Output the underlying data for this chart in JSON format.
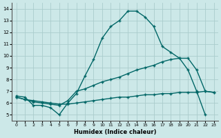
{
  "xlabel": "Humidex (Indice chaleur)",
  "bg_color": "#cce8e8",
  "grid_color": "#aacccc",
  "line_color": "#006666",
  "xlim": [
    -0.5,
    23.5
  ],
  "ylim": [
    4.5,
    14.5
  ],
  "xticks": [
    0,
    1,
    2,
    3,
    4,
    5,
    6,
    7,
    8,
    9,
    10,
    11,
    12,
    13,
    14,
    15,
    16,
    17,
    18,
    19,
    20,
    21,
    22,
    23
  ],
  "yticks": [
    5,
    6,
    7,
    8,
    9,
    10,
    11,
    12,
    13,
    14
  ],
  "line1_x": [
    0,
    1,
    2,
    3,
    4,
    5,
    6,
    7,
    8,
    9,
    10,
    11,
    12,
    13,
    14,
    15,
    16,
    17,
    18,
    19,
    20,
    21,
    22
  ],
  "line1_y": [
    6.6,
    6.5,
    5.8,
    5.8,
    5.6,
    5.0,
    6.0,
    6.8,
    8.3,
    9.7,
    11.5,
    12.5,
    13.0,
    13.8,
    13.8,
    13.3,
    12.5,
    10.8,
    10.3,
    9.8,
    8.8,
    7.0,
    5.0
  ],
  "line2_x": [
    0,
    1,
    2,
    3,
    4,
    5,
    6,
    7,
    8,
    9,
    10,
    11,
    12,
    13,
    14,
    15,
    16,
    17,
    18,
    19,
    20,
    21,
    22,
    23
  ],
  "line2_y": [
    6.5,
    6.3,
    6.1,
    6.0,
    5.9,
    5.8,
    6.2,
    7.0,
    7.2,
    7.5,
    7.8,
    8.0,
    8.2,
    8.5,
    8.8,
    9.0,
    9.2,
    9.5,
    9.7,
    9.8,
    9.8,
    8.8,
    7.0,
    6.9
  ],
  "line3_x": [
    0,
    1,
    2,
    3,
    4,
    5,
    6,
    7,
    8,
    9,
    10,
    11,
    12,
    13,
    14,
    15,
    16,
    17,
    18,
    19,
    20,
    21,
    22,
    23
  ],
  "line3_y": [
    6.5,
    6.3,
    6.2,
    6.1,
    6.0,
    5.9,
    5.9,
    6.0,
    6.1,
    6.2,
    6.3,
    6.4,
    6.5,
    6.5,
    6.6,
    6.7,
    6.7,
    6.8,
    6.8,
    6.9,
    6.9,
    6.9,
    7.0,
    6.9
  ]
}
